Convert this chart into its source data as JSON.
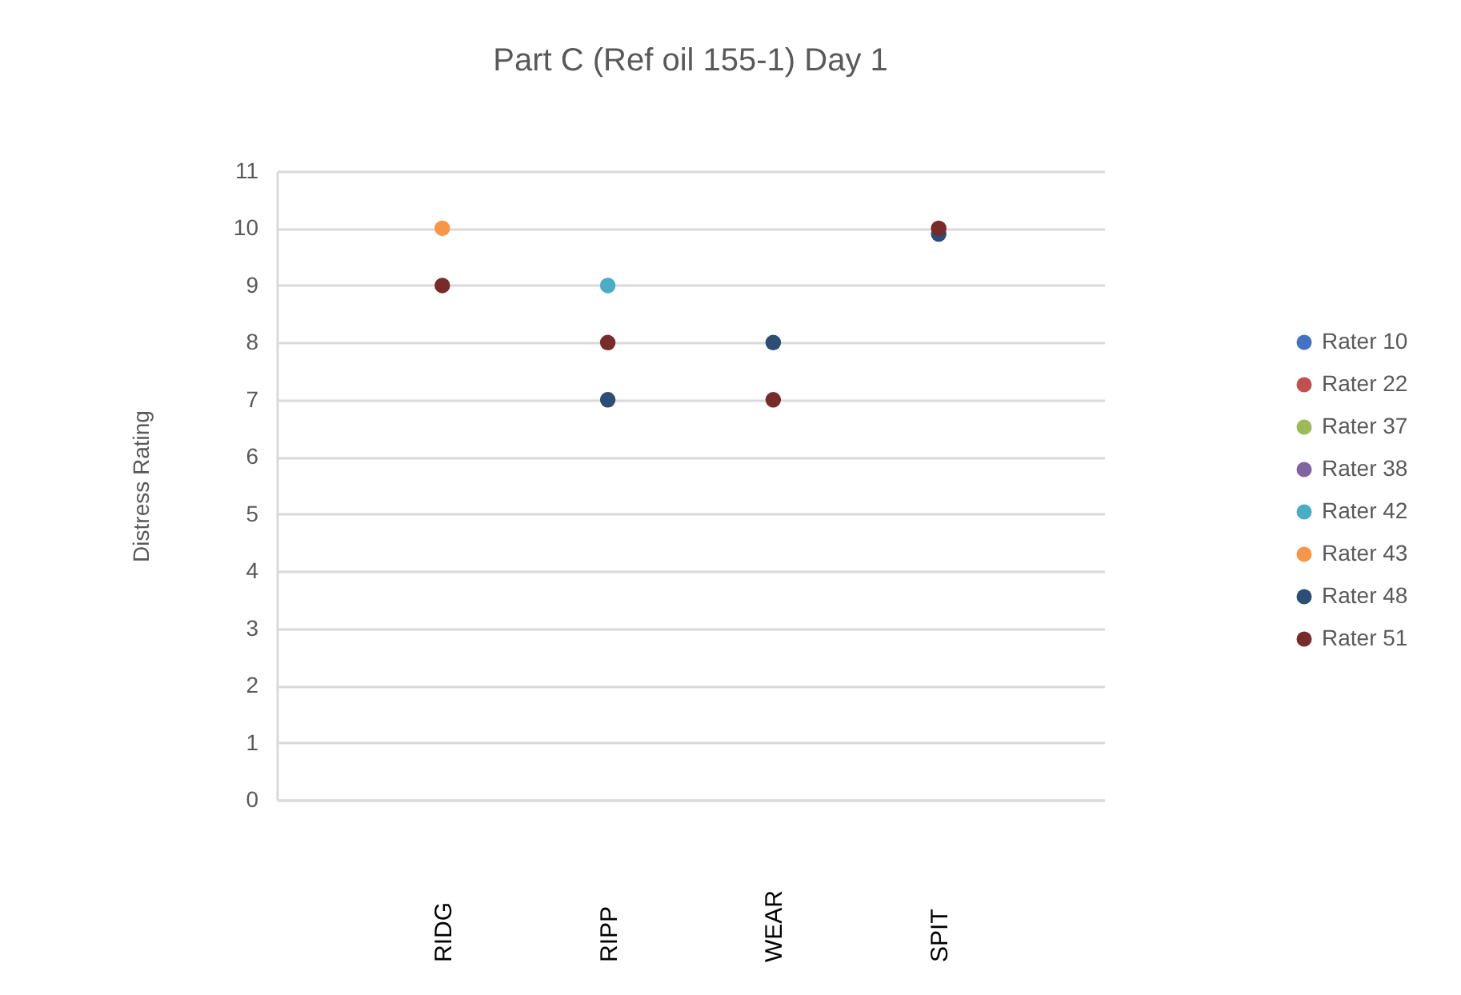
{
  "chart_data": {
    "type": "scatter",
    "title": "Part C (Ref oil 155-1) Day 1",
    "ylabel": "Distress Rating",
    "categories": [
      "RIDG",
      "RIPP",
      "WEAR",
      "SPIT"
    ],
    "series": [
      {
        "name": "Rater 10",
        "color": "#4472c4",
        "values": [
          null,
          null,
          null,
          null
        ]
      },
      {
        "name": "Rater 22",
        "color": "#c0504d",
        "values": [
          null,
          null,
          null,
          null
        ]
      },
      {
        "name": "Rater 37",
        "color": "#9bbb59",
        "values": [
          null,
          null,
          null,
          null
        ]
      },
      {
        "name": "Rater 38",
        "color": "#8064a2",
        "values": [
          null,
          null,
          null,
          null
        ]
      },
      {
        "name": "Rater 42",
        "color": "#4bacc6",
        "values": [
          null,
          9,
          null,
          null
        ]
      },
      {
        "name": "Rater 43",
        "color": "#f79646",
        "values": [
          10,
          null,
          null,
          null
        ]
      },
      {
        "name": "Rater 48",
        "color": "#2c4d75",
        "values": [
          null,
          7,
          8,
          9.9
        ]
      },
      {
        "name": "Rater 51",
        "color": "#772c2a",
        "values": [
          9,
          8,
          7,
          10
        ]
      }
    ],
    "ylim": [
      0,
      11
    ],
    "yticks": [
      0,
      1,
      2,
      3,
      4,
      5,
      6,
      7,
      8,
      9,
      10,
      11
    ],
    "grid": "y",
    "legend": "right",
    "marker": "circle"
  }
}
